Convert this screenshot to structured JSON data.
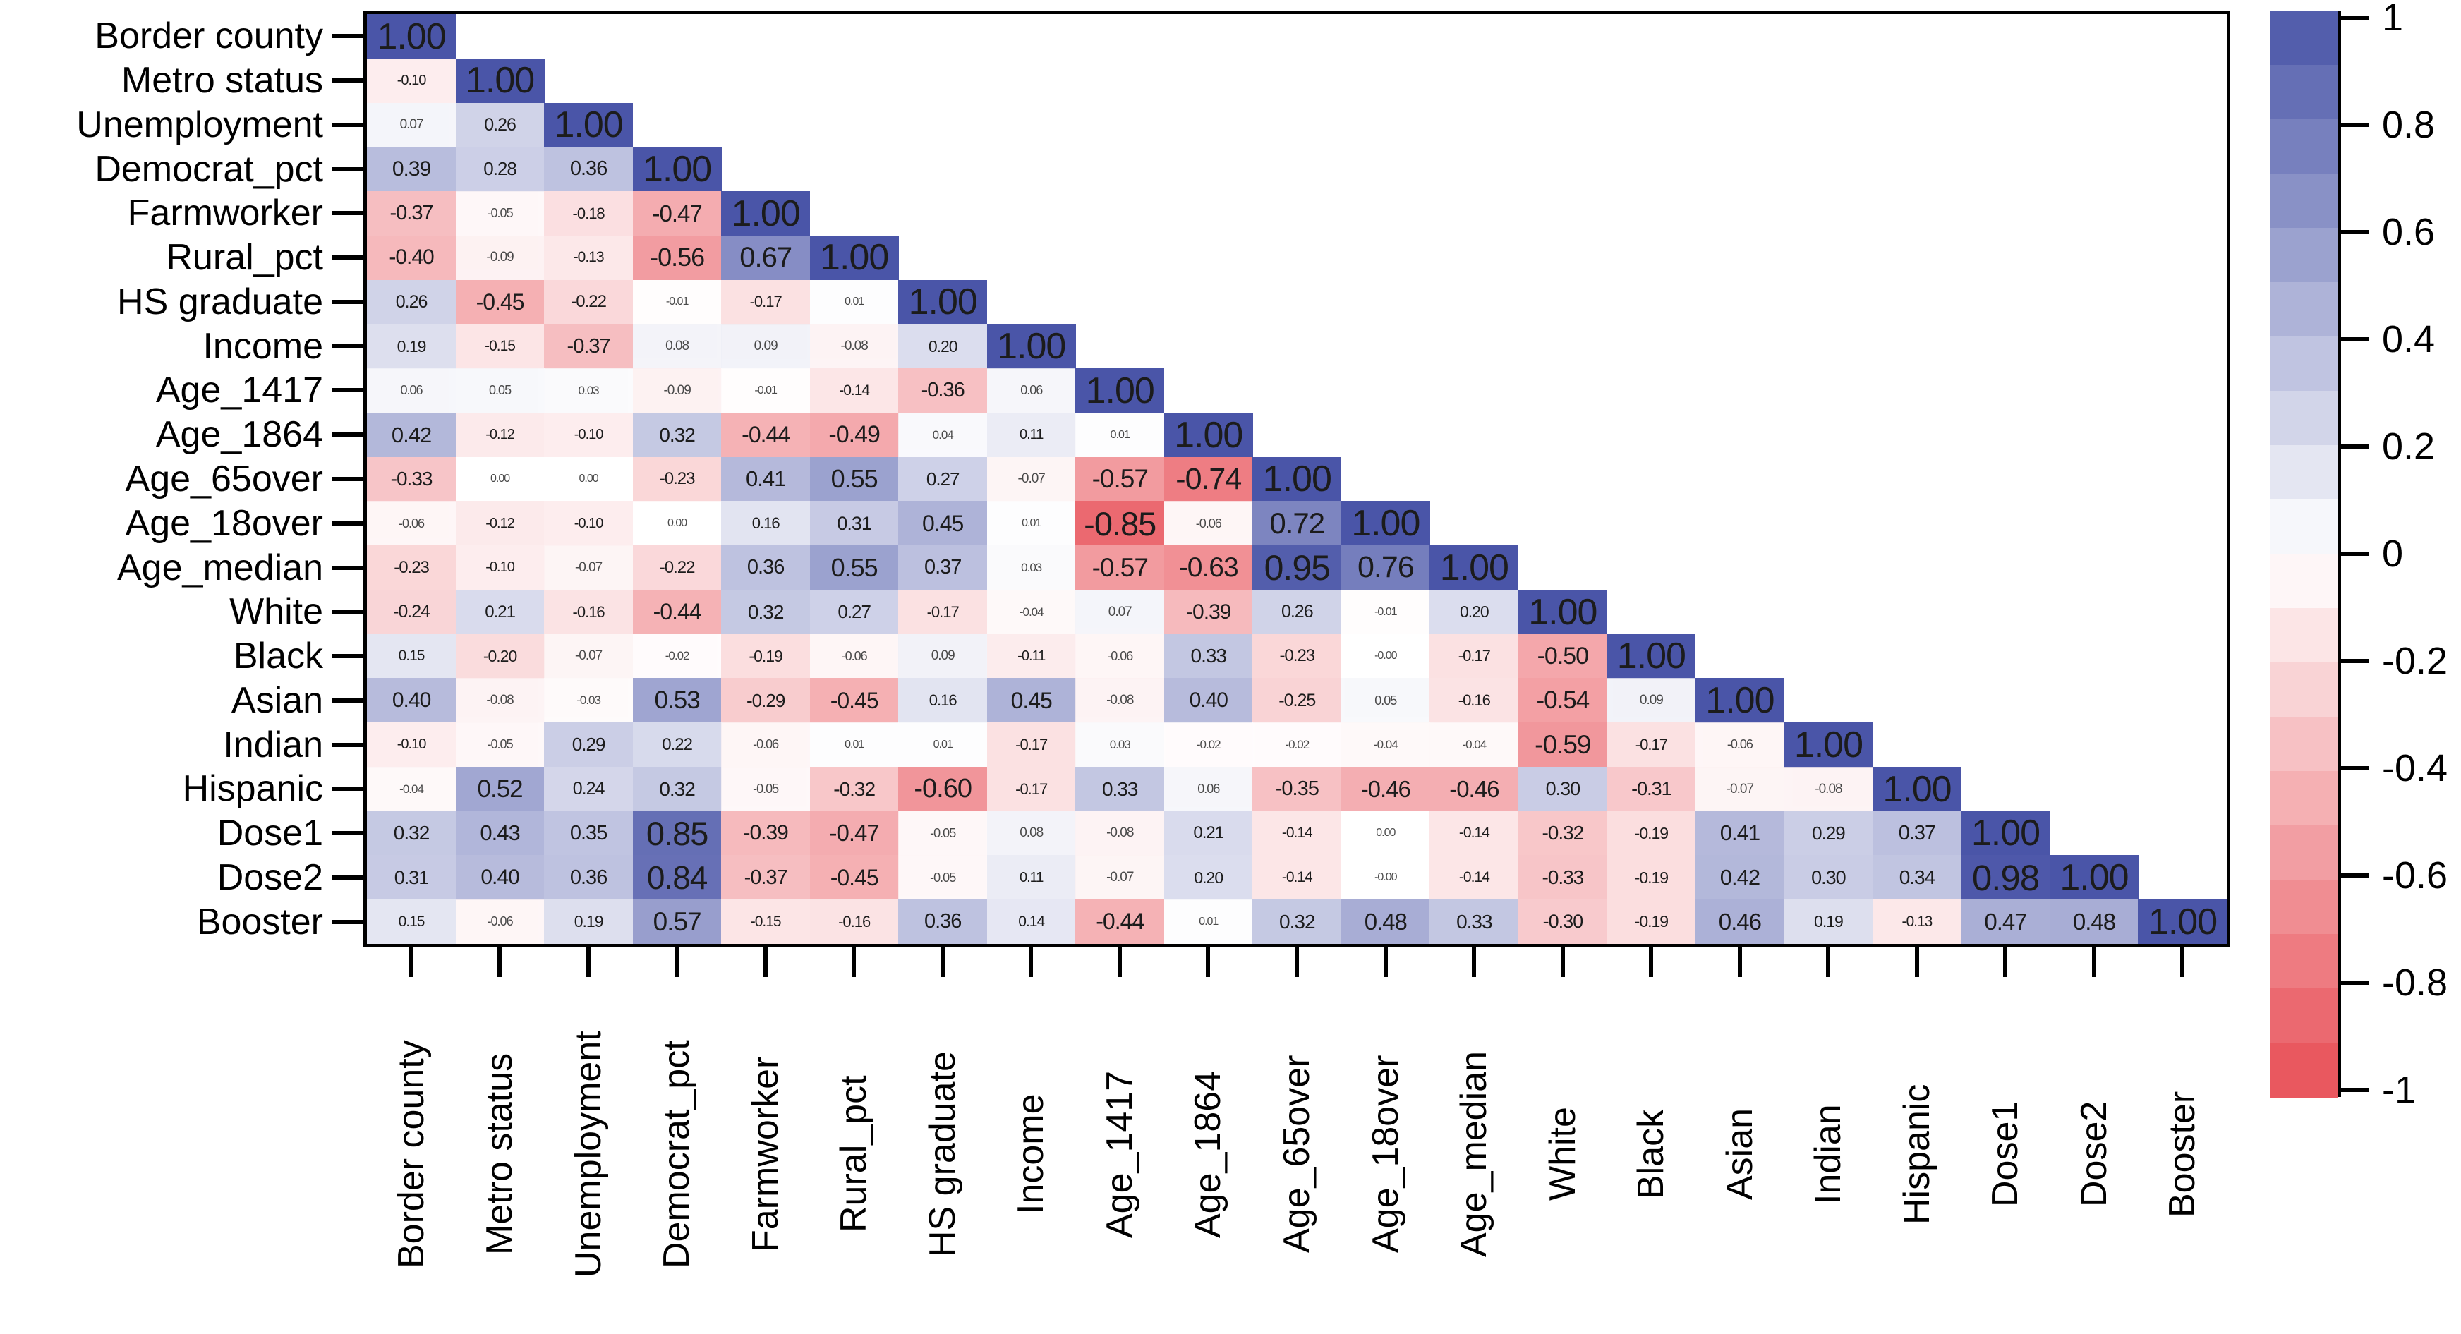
{
  "chart_data": {
    "type": "heatmap",
    "subtype": "correlation-matrix-lower-triangle",
    "title": "",
    "variables": [
      "Border county",
      "Metro status",
      "Unemployment",
      "Democrat_pct",
      "Farmworker",
      "Rural_pct",
      "HS graduate",
      "Income",
      "Age_1417",
      "Age_1864",
      "Age_65over",
      "Age_18over",
      "Age_median",
      "White",
      "Black",
      "Asian",
      "Indian",
      "Hispanic",
      "Dose1",
      "Dose2",
      "Booster"
    ],
    "matrix_lower_triangle": [
      [
        "1.00"
      ],
      [
        "-0.10",
        "1.00"
      ],
      [
        "0.07",
        "0.26",
        "1.00"
      ],
      [
        "0.39",
        "0.28",
        "0.36",
        "1.00"
      ],
      [
        "-0.37",
        "-0.05",
        "-0.18",
        "-0.47",
        "1.00"
      ],
      [
        "-0.40",
        "-0.09",
        "-0.13",
        "-0.56",
        "0.67",
        "1.00"
      ],
      [
        "0.26",
        "-0.45",
        "-0.22",
        "-0.01",
        "-0.17",
        "0.01",
        "1.00"
      ],
      [
        "0.19",
        "-0.15",
        "-0.37",
        "0.08",
        "0.09",
        "-0.08",
        "0.20",
        "1.00"
      ],
      [
        "0.06",
        "0.05",
        "0.03",
        "-0.09",
        "-0.01",
        "-0.14",
        "-0.36",
        "0.06",
        "1.00"
      ],
      [
        "0.42",
        "-0.12",
        "-0.10",
        "0.32",
        "-0.44",
        "-0.49",
        "0.04",
        "0.11",
        "0.01",
        "1.00"
      ],
      [
        "-0.33",
        "0.00",
        "0.00",
        "-0.23",
        "0.41",
        "0.55",
        "0.27",
        "-0.07",
        "-0.57",
        "-0.74",
        "1.00"
      ],
      [
        "-0.06",
        "-0.12",
        "-0.10",
        "0.00",
        "0.16",
        "0.31",
        "0.45",
        "0.01",
        "-0.85",
        "-0.06",
        "0.72",
        "1.00"
      ],
      [
        "-0.23",
        "-0.10",
        "-0.07",
        "-0.22",
        "0.36",
        "0.55",
        "0.37",
        "0.03",
        "-0.57",
        "-0.63",
        "0.95",
        "0.76",
        "1.00"
      ],
      [
        "-0.24",
        "0.21",
        "-0.16",
        "-0.44",
        "0.32",
        "0.27",
        "-0.17",
        "-0.04",
        "0.07",
        "-0.39",
        "0.26",
        "-0.01",
        "0.20",
        "1.00"
      ],
      [
        "0.15",
        "-0.20",
        "-0.07",
        "-0.02",
        "-0.19",
        "-0.06",
        "0.09",
        "-0.11",
        "-0.06",
        "0.33",
        "-0.23",
        "-0.00",
        "-0.17",
        "-0.50",
        "1.00"
      ],
      [
        "0.40",
        "-0.08",
        "-0.03",
        "0.53",
        "-0.29",
        "-0.45",
        "0.16",
        "0.45",
        "-0.08",
        "0.40",
        "-0.25",
        "0.05",
        "-0.16",
        "-0.54",
        "0.09",
        "1.00"
      ],
      [
        "-0.10",
        "-0.05",
        "0.29",
        "0.22",
        "-0.06",
        "0.01",
        "0.01",
        "-0.17",
        "0.03",
        "-0.02",
        "-0.02",
        "-0.04",
        "-0.04",
        "-0.59",
        "-0.17",
        "-0.06",
        "1.00"
      ],
      [
        "-0.04",
        "0.52",
        "0.24",
        "0.32",
        "-0.05",
        "-0.32",
        "-0.60",
        "-0.17",
        "0.33",
        "0.06",
        "-0.35",
        "-0.46",
        "-0.46",
        "0.30",
        "-0.31",
        "-0.07",
        "-0.08",
        "1.00"
      ],
      [
        "0.32",
        "0.43",
        "0.35",
        "0.85",
        "-0.39",
        "-0.47",
        "-0.05",
        "0.08",
        "-0.08",
        "0.21",
        "-0.14",
        "0.00",
        "-0.14",
        "-0.32",
        "-0.19",
        "0.41",
        "0.29",
        "0.37",
        "1.00"
      ],
      [
        "0.31",
        "0.40",
        "0.36",
        "0.84",
        "-0.37",
        "-0.45",
        "-0.05",
        "0.11",
        "-0.07",
        "0.20",
        "-0.14",
        "-0.00",
        "-0.14",
        "-0.33",
        "-0.19",
        "0.42",
        "0.30",
        "0.34",
        "0.98",
        "1.00"
      ],
      [
        "0.15",
        "-0.06",
        "0.19",
        "0.57",
        "-0.15",
        "-0.16",
        "0.36",
        "0.14",
        "-0.44",
        "0.01",
        "0.32",
        "0.48",
        "0.33",
        "-0.30",
        "-0.19",
        "0.46",
        "0.19",
        "-0.13",
        "0.47",
        "0.48",
        "1.00"
      ]
    ],
    "value_range": [
      -1,
      1
    ],
    "colorbar": {
      "position": "right",
      "tick_labels": [
        "1",
        "0.8",
        "0.6",
        "0.4",
        "0.2",
        "0",
        "-0.2",
        "-0.4",
        "-0.6",
        "-0.8",
        "-1"
      ],
      "tick_values": [
        1,
        0.8,
        0.6,
        0.4,
        0.2,
        0,
        -0.2,
        -0.4,
        -0.6,
        -0.8,
        -1
      ],
      "positive_color": "#4A55A8",
      "zero_color": "#FFFFFF",
      "negative_color": "#E84F57",
      "steps": 20
    },
    "x_axis": {
      "labels_rotation_deg": 90,
      "tick_side": "bottom"
    },
    "y_axis": {
      "tick_side": "left"
    },
    "grid": false,
    "cell_text_color": "#1c1c1c",
    "frame_color": "#000000"
  }
}
